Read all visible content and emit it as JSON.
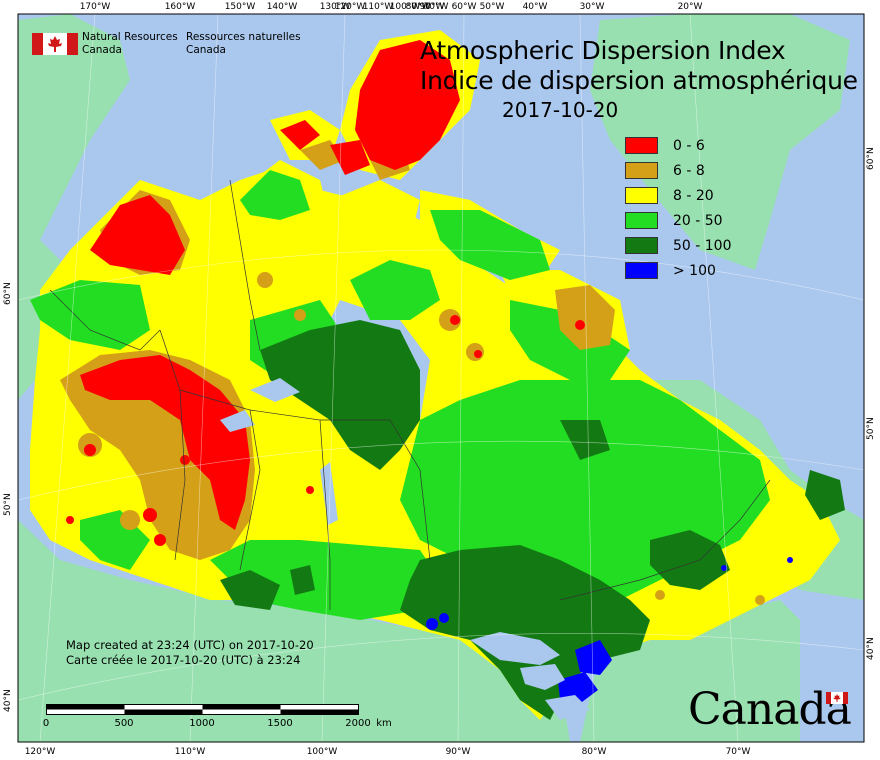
{
  "header": {
    "org_en_line1": "Natural Resources",
    "org_en_line2": "Canada",
    "org_fr_line1": "Ressources naturelles",
    "org_fr_line2": "Canada"
  },
  "title": {
    "en": "Atmospheric Dispersion Index",
    "fr": "Indice de dispersion atmosphérique",
    "date": "2017-10-20"
  },
  "legend": [
    {
      "label": "0 - 6",
      "color": "#ff0000"
    },
    {
      "label": "6 - 8",
      "color": "#d4a017"
    },
    {
      "label": "8 - 20",
      "color": "#ffff00"
    },
    {
      "label": "20 - 50",
      "color": "#22dd22"
    },
    {
      "label": "50 - 100",
      "color": "#137a13"
    },
    {
      "label": "> 100",
      "color": "#0000ff"
    }
  ],
  "colors": {
    "ocean": "#aac8ee",
    "land_other": "#98e0b0",
    "boundary": "#333333"
  },
  "axis": {
    "top_ticks": [
      "170°W",
      "160°W",
      "150°W",
      "140°W",
      "130°W",
      "120°W",
      "110°W",
      "100°W",
      "90°W",
      "80°W",
      "70°W",
      "60°W",
      "50°W",
      "40°W",
      "30°W",
      "20°W"
    ],
    "bottom_ticks": [
      "120°W",
      "110°W",
      "100°W",
      "90°W",
      "80°W",
      "70°W"
    ],
    "left_ticks": [
      "60°N",
      "50°N",
      "40°N"
    ],
    "right_ticks": [
      "60°N",
      "50°N",
      "40°N"
    ]
  },
  "footer": {
    "created_en": "Map created at 23:24 (UTC) on 2017-10-20",
    "created_fr": "Carte créée le 2017-10-20 (UTC) à 23:24",
    "wordmark": "Canada"
  },
  "scale_bar": {
    "labels": [
      "0",
      "500",
      "1000",
      "1500",
      "2000"
    ],
    "unit": "km"
  },
  "icons": {
    "org_logo": "canada-flag-icon",
    "wordmark_flag": "canada-flag-icon"
  }
}
